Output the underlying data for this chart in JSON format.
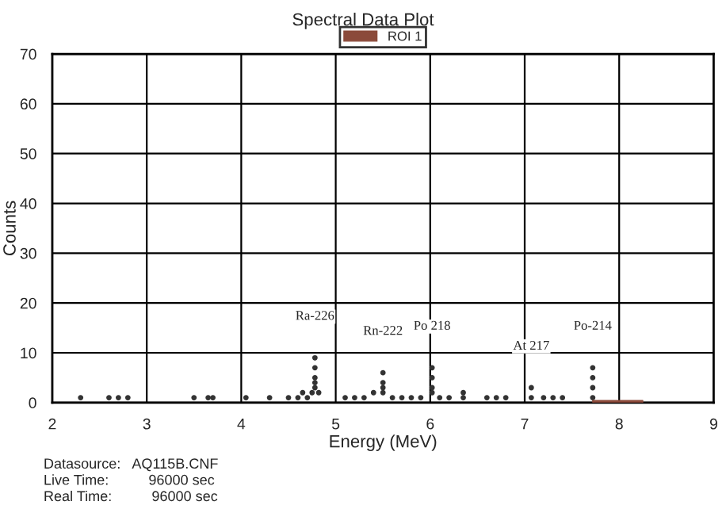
{
  "chart_data": {
    "type": "scatter",
    "title": "Spectral Data Plot",
    "xlabel": "Energy (MeV)",
    "ylabel": "Counts",
    "series": [
      {
        "color": "#333333",
        "marker": "circle",
        "x": [
          2.3,
          2.6,
          2.7,
          2.8,
          3.5,
          3.65,
          3.7,
          4.05,
          4.3,
          4.5,
          4.6,
          4.65,
          4.7,
          4.75,
          4.78,
          4.78,
          4.78,
          4.78,
          4.78,
          4.82,
          5.1,
          5.2,
          5.3,
          5.4,
          5.5,
          5.5,
          5.5,
          5.5,
          5.6,
          5.7,
          5.8,
          5.9,
          6.02,
          6.02,
          6.02,
          6.02,
          6.1,
          6.2,
          6.35,
          6.35,
          6.6,
          6.7,
          6.8,
          7.07,
          7.07,
          7.2,
          7.3,
          7.4,
          7.72,
          7.72,
          7.72,
          7.72
        ],
        "values": [
          1,
          1,
          1,
          1,
          1,
          1,
          1,
          1,
          1,
          1,
          1,
          2,
          1,
          2,
          3,
          4,
          5,
          7,
          9,
          2,
          1,
          1,
          1,
          2,
          2,
          3,
          4,
          6,
          1,
          1,
          1,
          1,
          2,
          3,
          5,
          7,
          1,
          1,
          1,
          2,
          1,
          1,
          1,
          1,
          3,
          1,
          1,
          1,
          1,
          3,
          5,
          7
        ]
      },
      {
        "type": "area",
        "name": "ROI 1",
        "color": "#8b4a3a",
        "x": [
          7.72,
          8.25
        ],
        "values": [
          0.4,
          0.4
        ]
      }
    ],
    "annotations": [
      {
        "text": "Ra-226",
        "x": 4.78,
        "y": 9
      },
      {
        "text": "Rn-222",
        "x": 5.5,
        "y": 6
      },
      {
        "text": "Po 218",
        "x": 6.02,
        "y": 7
      },
      {
        "text": "At 217",
        "x": 7.07,
        "y": 3
      },
      {
        "text": "Po-214",
        "x": 7.72,
        "y": 7
      },
      "Datasource:   AQ115B.CNF",
      "Live Time:          96000 sec",
      "Real Time:          96000 sec"
    ],
    "xlim": [
      2,
      9
    ],
    "xticks": [
      2,
      3,
      4,
      5,
      6,
      7,
      8,
      9
    ],
    "ylim": [
      0,
      70
    ],
    "yticks": [
      0,
      10,
      20,
      30,
      40,
      50,
      60,
      70
    ],
    "grid": true,
    "legend": "top"
  }
}
